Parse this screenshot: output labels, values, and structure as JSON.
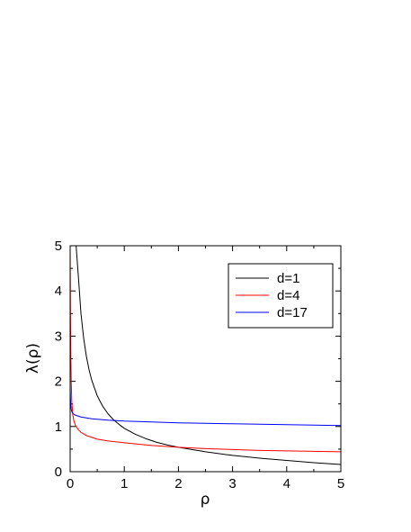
{
  "chart_data": {
    "type": "line",
    "title": "",
    "xlabel": "ρ",
    "ylabel": "λ(ρ)",
    "xlim": [
      0,
      5
    ],
    "ylim": [
      0,
      5
    ],
    "xticks": [
      "0",
      "1",
      "2",
      "3",
      "4",
      "5"
    ],
    "yticks": [
      "0",
      "1",
      "2",
      "3",
      "4",
      "5"
    ],
    "grid": false,
    "legend_position": "top-right",
    "series": [
      {
        "name": "d=1",
        "color": "#000000",
        "x": [
          0.11,
          0.15,
          0.2,
          0.25,
          0.3,
          0.35,
          0.4,
          0.5,
          0.6,
          0.7,
          0.8,
          0.9,
          1.0,
          1.2,
          1.4,
          1.6,
          1.8,
          2.0,
          2.5,
          3.0,
          3.5,
          4.0,
          4.5,
          5.0
        ],
        "y": [
          5.0,
          4.35,
          3.5,
          2.95,
          2.55,
          2.25,
          2.02,
          1.68,
          1.45,
          1.28,
          1.15,
          1.05,
          0.96,
          0.83,
          0.73,
          0.65,
          0.59,
          0.54,
          0.44,
          0.36,
          0.3,
          0.25,
          0.2,
          0.16
        ]
      },
      {
        "name": "d=4",
        "color": "#ff0000",
        "x": [
          0.0,
          0.005,
          0.01,
          0.02,
          0.03,
          0.05,
          0.07,
          0.1,
          0.15,
          0.2,
          0.3,
          0.4,
          0.5,
          0.7,
          1.0,
          1.5,
          2.0,
          2.5,
          3.0,
          3.5,
          4.0,
          4.5,
          5.0
        ],
        "y": [
          5.0,
          3.6,
          2.8,
          2.0,
          1.55,
          1.25,
          1.12,
          1.02,
          0.93,
          0.87,
          0.8,
          0.76,
          0.72,
          0.68,
          0.64,
          0.58,
          0.54,
          0.51,
          0.49,
          0.47,
          0.46,
          0.45,
          0.44
        ]
      },
      {
        "name": "d=17",
        "color": "#0000ff",
        "x": [
          0.0,
          0.005,
          0.01,
          0.02,
          0.03,
          0.05,
          0.07,
          0.1,
          0.15,
          0.2,
          0.3,
          0.4,
          0.5,
          0.7,
          1.0,
          1.5,
          2.0,
          2.5,
          3.0,
          3.5,
          4.0,
          4.5,
          5.0
        ],
        "y": [
          1.95,
          1.65,
          1.5,
          1.38,
          1.33,
          1.29,
          1.27,
          1.25,
          1.23,
          1.21,
          1.19,
          1.17,
          1.16,
          1.14,
          1.12,
          1.1,
          1.08,
          1.07,
          1.06,
          1.05,
          1.04,
          1.03,
          1.02
        ]
      }
    ]
  }
}
